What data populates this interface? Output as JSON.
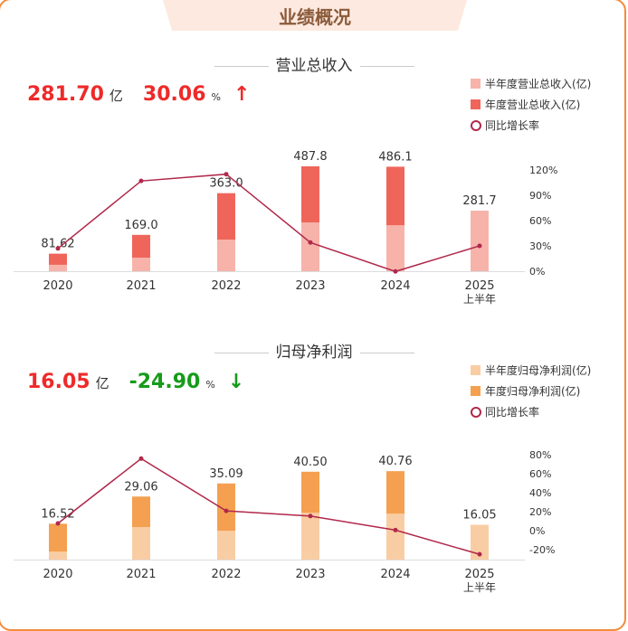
{
  "header": {
    "title": "业绩概况"
  },
  "colors": {
    "line": "#b0284a",
    "red_up": "#ee2a2a",
    "green_down": "#169b1a"
  },
  "sections": [
    {
      "title": "营业总收入",
      "value": "281.70",
      "value_unit": "亿",
      "change": "30.06",
      "change_unit": "%",
      "trend": "up",
      "trend_icon": "↑",
      "value_color": "#ee2a2a",
      "change_color": "#ee2a2a",
      "legend": [
        "半年度营业总收入(亿)",
        "年度营业总收入(亿)",
        "同比增长率"
      ]
    },
    {
      "title": "归母净利润",
      "value": "16.05",
      "value_unit": "亿",
      "change": "-24.90",
      "change_unit": "%",
      "trend": "down",
      "trend_icon": "↓",
      "value_color": "#ee2a2a",
      "change_color": "#169b1a",
      "legend": [
        "半年度归母净利润(亿)",
        "年度归母净利润(亿)",
        "同比增长率"
      ]
    }
  ],
  "chart_data": [
    {
      "type": "bar",
      "categories": [
        "2020",
        "2021",
        "2022",
        "2023",
        "2024",
        "2025\n上半年"
      ],
      "series": [
        {
          "name": "半年度营业总收入(亿)",
          "values": [
            30,
            63,
            147,
            227,
            214,
            281.7
          ],
          "color": "#f7b3aa"
        },
        {
          "name": "年度营业总收入(亿)",
          "values": [
            81.62,
            169.0,
            363.0,
            487.8,
            486.1,
            null
          ],
          "color": "#ef655a"
        },
        {
          "name": "同比增长率",
          "type": "line",
          "values": [
            27,
            107,
            115,
            34,
            -0.3,
            30.06
          ],
          "color": "#b0284a"
        }
      ],
      "data_labels": [
        "81.62",
        "169.0",
        "363.0",
        "487.8",
        "486.1",
        "281.7"
      ],
      "y2_ticks": [
        "0%",
        "30%",
        "60%",
        "90%",
        "120%"
      ],
      "y2lim": [
        0,
        120
      ]
    },
    {
      "type": "bar",
      "categories": [
        "2020",
        "2021",
        "2022",
        "2023",
        "2024",
        "2025\n上半年"
      ],
      "series": [
        {
          "name": "半年度归母净利润(亿)",
          "values": [
            3.7,
            15,
            13.3,
            21.6,
            21.2,
            16.05
          ],
          "color": "#f9cda3"
        },
        {
          "name": "年度归母净利润(亿)",
          "values": [
            16.52,
            29.06,
            35.09,
            40.5,
            40.76,
            null
          ],
          "color": "#f4a050"
        },
        {
          "name": "同比增长率",
          "type": "line",
          "values": [
            7.6,
            75.9,
            20.8,
            15.4,
            0.6,
            -24.9
          ],
          "color": "#b0284a"
        }
      ],
      "data_labels": [
        "16.52",
        "29.06",
        "35.09",
        "40.50",
        "40.76",
        "16.05"
      ],
      "y2_ticks": [
        "-20%",
        "0%",
        "20%",
        "40%",
        "60%",
        "80%"
      ],
      "y2lim": [
        -20,
        80
      ]
    }
  ]
}
